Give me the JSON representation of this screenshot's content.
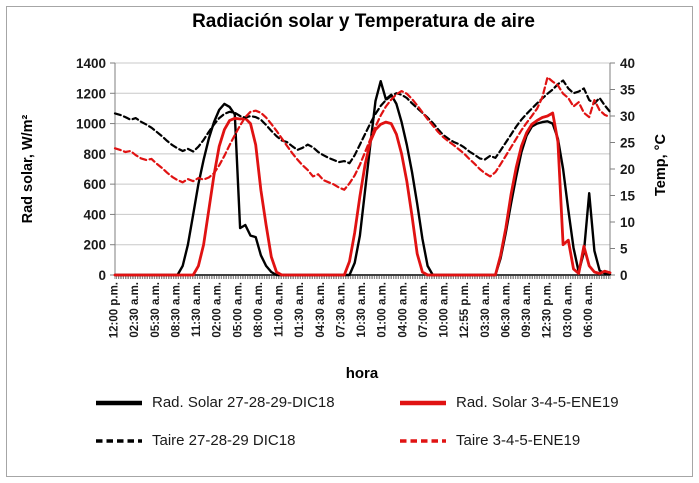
{
  "title": "Radiación solar y Temperatura de aire",
  "axes": {
    "left": {
      "title": "Rad solar, W/m²",
      "ticks": [
        0,
        200,
        400,
        600,
        800,
        1000,
        1200,
        1400
      ]
    },
    "right": {
      "title": "Temp, °C",
      "ticks": [
        0,
        5,
        10,
        15,
        20,
        25,
        30,
        35,
        40
      ]
    },
    "x": {
      "title": "hora"
    }
  },
  "chart_data": {
    "type": "line",
    "title": "Radiación solar y Temperatura de aire",
    "xlabel": "hora",
    "ylabel_left": "Rad solar, W/m²",
    "ylabel_right": "Temp, °C",
    "left_ylim": [
      0,
      1400
    ],
    "right_ylim": [
      0,
      40
    ],
    "grid": "horizontal",
    "legend_position": "bottom",
    "minor_xticks": 288,
    "x_labels": [
      "12:00 p.m.",
      "02:30 a.m.",
      "05:30 a.m.",
      "08:30 a.m.",
      "11:30 a.m.",
      "02:00 a.m.",
      "05:00 a.m.",
      "08:00 a.m.",
      "11:00 a.m.",
      "01:30 a.m.",
      "04:30 a.m.",
      "07:30 a.m.",
      "10:30 a.m.",
      "01:00 a.m.",
      "04:00 a.m.",
      "07:00 a.m.",
      "10:00 a.m.",
      "12:55 p.m.",
      "03:30 a.m.",
      "06:30 a.m.",
      "09:30 a.m.",
      "12:30 p.m.",
      "03:00 a.m.",
      "06:00 a.m."
    ],
    "series": [
      {
        "name": "Rad. Solar 27-28-29-DIC18",
        "color": "#000000",
        "dash": false,
        "axis": "left",
        "unit": "W/m²",
        "values": [
          0,
          0,
          0,
          0,
          0,
          0,
          0,
          0,
          0,
          0,
          0,
          0,
          0,
          60,
          200,
          400,
          600,
          760,
          900,
          1010,
          1090,
          1130,
          1110,
          1060,
          310,
          330,
          260,
          250,
          130,
          60,
          20,
          0,
          0,
          0,
          0,
          0,
          0,
          0,
          0,
          0,
          0,
          0,
          0,
          0,
          0,
          0,
          80,
          260,
          560,
          860,
          1150,
          1280,
          1160,
          1190,
          1130,
          1010,
          860,
          680,
          470,
          240,
          60,
          0,
          0,
          0,
          0,
          0,
          0,
          0,
          0,
          0,
          0,
          0,
          0,
          0,
          110,
          280,
          470,
          650,
          810,
          920,
          980,
          1000,
          1010,
          1015,
          1000,
          900,
          700,
          430,
          180,
          20,
          150,
          540,
          160,
          30,
          10,
          5
        ]
      },
      {
        "name": "Rad. Solar 3-4-5-ENE19",
        "color": "#e01212",
        "dash": false,
        "axis": "left",
        "unit": "W/m²",
        "values": [
          0,
          0,
          0,
          0,
          0,
          0,
          0,
          0,
          0,
          0,
          0,
          0,
          0,
          0,
          0,
          0,
          60,
          200,
          430,
          660,
          850,
          960,
          1020,
          1035,
          1030,
          1035,
          1000,
          860,
          560,
          330,
          120,
          20,
          0,
          0,
          0,
          0,
          0,
          0,
          0,
          0,
          0,
          0,
          0,
          0,
          0,
          90,
          280,
          520,
          730,
          880,
          960,
          995,
          1010,
          1000,
          930,
          800,
          620,
          390,
          140,
          20,
          0,
          0,
          0,
          0,
          0,
          0,
          0,
          0,
          0,
          0,
          0,
          0,
          0,
          0,
          130,
          310,
          530,
          710,
          850,
          940,
          995,
          1020,
          1040,
          1050,
          1070,
          880,
          200,
          230,
          40,
          10,
          190,
          60,
          20,
          10,
          25,
          15
        ]
      },
      {
        "name": "Taire 27-28-29 DIC18",
        "color": "#000000",
        "dash": true,
        "axis": "right",
        "unit": "°C",
        "values": [
          30.5,
          30.2,
          29.8,
          29.3,
          29.6,
          28.9,
          28.4,
          27.8,
          27.0,
          26.2,
          25.3,
          24.5,
          23.9,
          23.4,
          23.8,
          23.3,
          24.2,
          25.5,
          27.0,
          28.4,
          29.6,
          30.4,
          30.8,
          30.6,
          30.0,
          29.7,
          30.0,
          29.8,
          29.3,
          28.3,
          27.2,
          26.2,
          25.4,
          25.1,
          24.3,
          23.6,
          24.0,
          24.6,
          24.1,
          23.2,
          22.6,
          22.1,
          21.7,
          21.3,
          21.5,
          21.1,
          22.6,
          24.6,
          26.6,
          28.6,
          30.4,
          31.9,
          33.0,
          33.8,
          34.3,
          34.0,
          33.4,
          32.4,
          31.5,
          30.6,
          29.7,
          28.7,
          27.5,
          26.4,
          25.7,
          25.1,
          24.7,
          24.1,
          23.3,
          22.7,
          22.0,
          21.8,
          22.5,
          22.1,
          23.5,
          25.0,
          26.5,
          28.0,
          29.3,
          30.4,
          31.4,
          32.4,
          33.3,
          34.2,
          35.0,
          36.0,
          36.7,
          35.2,
          34.3,
          34.6,
          35.2,
          33.0,
          32.4,
          33.4,
          32.0,
          30.8
        ]
      },
      {
        "name": "Taire 3-4-5-ENE19",
        "color": "#e01212",
        "dash": true,
        "axis": "right",
        "unit": "°C",
        "values": [
          23.9,
          23.6,
          23.2,
          23.4,
          22.6,
          22.0,
          21.7,
          21.9,
          21.0,
          20.2,
          19.3,
          18.5,
          17.9,
          17.5,
          18.1,
          17.7,
          18.3,
          18.0,
          18.4,
          19.2,
          20.7,
          22.5,
          24.5,
          26.4,
          28.2,
          29.8,
          30.8,
          31.0,
          30.6,
          29.7,
          28.5,
          27.2,
          25.8,
          24.4,
          23.0,
          21.8,
          20.7,
          19.8,
          18.6,
          19.0,
          17.9,
          17.5,
          17.1,
          16.5,
          16.1,
          17.3,
          18.8,
          20.8,
          23.2,
          25.6,
          28.0,
          30.1,
          31.8,
          33.1,
          34.1,
          34.7,
          34.2,
          33.2,
          32.0,
          30.7,
          29.4,
          28.2,
          27.0,
          26.0,
          25.2,
          24.5,
          23.7,
          22.9,
          21.9,
          21.0,
          20.0,
          19.2,
          18.6,
          19.4,
          20.9,
          22.5,
          24.1,
          25.7,
          27.3,
          28.7,
          30.0,
          31.4,
          33.5,
          37.3,
          36.5,
          35.8,
          34.2,
          33.4,
          31.8,
          32.6,
          30.6,
          29.8,
          33.0,
          31.1,
          30.2,
          29.8
        ]
      }
    ]
  },
  "colors": {
    "black_series": "#000000",
    "red_series": "#e01212",
    "gridline": "#c8c8c8",
    "axis_line": "#7f7f7f",
    "tick_text": "#1a1a1a",
    "frame_border": "#a6a6a6"
  }
}
